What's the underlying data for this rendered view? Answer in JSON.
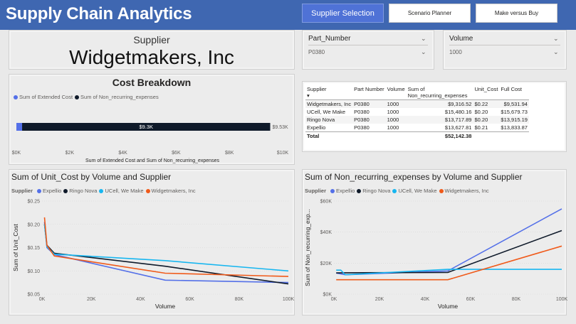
{
  "header": {
    "title": "Supply Chain Analytics",
    "nav": [
      {
        "label": "Supplier Selection",
        "active": true
      },
      {
        "label": "Scenario Planner",
        "active": false
      },
      {
        "label": "Make versus Buy",
        "active": false
      }
    ]
  },
  "supplier_card": {
    "label": "Supplier",
    "value": "Widgetmakers, Inc"
  },
  "slicers": {
    "part": {
      "label": "Part_Number",
      "value": "P0380"
    },
    "volume": {
      "label": "Volume",
      "value": "1000"
    }
  },
  "colors": {
    "Expellio": "#5470e8",
    "Ringo Nova": "#0f1a2a",
    "UCell, We Make": "#17b6f0",
    "Widgetmakers, Inc": "#f05a1a",
    "header": "#3f67b1"
  },
  "cost_breakdown": {
    "title": "Cost Breakdown",
    "legend": [
      "Sum of Extended Cost",
      "Sum of Non_recurring_expenses"
    ],
    "bar_label": "$9.3K",
    "total_label": "$9.53K",
    "xlabel": "Sum of Extended Cost and Sum of Non_recurring_expenses",
    "ticks": [
      "$0K",
      "$2K",
      "$4K",
      "$6K",
      "$8K",
      "$10K"
    ]
  },
  "table": {
    "headers": [
      "Supplier",
      "Part Number",
      "Volume",
      "Sum of Non_recurring_expenses",
      "Unit_Cost",
      "Full Cost"
    ],
    "header_sum_line1": "Sum of",
    "header_sum_line2": "Non_recurring_expenses",
    "rows": [
      [
        "Widgetmakers, Inc",
        "P0380",
        "1000",
        "$9,316.52",
        "$0.22",
        "$9,531.94"
      ],
      [
        "UCell, We Make",
        "P0380",
        "1000",
        "$15,480.16",
        "$0.20",
        "$15,679.73"
      ],
      [
        "Ringo Nova",
        "P0380",
        "1000",
        "$13,717.89",
        "$0.20",
        "$13,915.19"
      ],
      [
        "Expellio",
        "P0380",
        "1000",
        "$13,627.81",
        "$0.21",
        "$13,833.87"
      ]
    ],
    "total_label": "Total",
    "total_value": "$52,142.38"
  },
  "chart_data": [
    {
      "type": "bar",
      "title": "Cost Breakdown",
      "orientation": "horizontal",
      "stacked": true,
      "series": [
        {
          "name": "Sum of Extended Cost",
          "values": [
            215
          ]
        },
        {
          "name": "Sum of Non_recurring_expenses",
          "values": [
            9317
          ]
        }
      ],
      "xlabel": "Sum of Extended Cost and Sum of Non_recurring_expenses",
      "xlim": [
        0,
        10000
      ]
    },
    {
      "type": "line",
      "title": "Sum of Unit_Cost by Volume and Supplier",
      "xlabel": "Volume",
      "ylabel": "Sum of Unit_Cost",
      "xlim": [
        0,
        100000
      ],
      "ylim": [
        0.05,
        0.25
      ],
      "x_ticks": [
        "0K",
        "20K",
        "40K",
        "60K",
        "80K",
        "100K"
      ],
      "y_ticks": [
        "$0.05",
        "$0.10",
        "$0.15",
        "$0.20",
        "$0.25"
      ],
      "legend_title": "Supplier",
      "series": [
        {
          "name": "Expellio",
          "x": [
            1000,
            2000,
            5000,
            50000,
            100000
          ],
          "y": [
            0.205,
            0.15,
            0.135,
            0.08,
            0.075
          ]
        },
        {
          "name": "Ringo Nova",
          "x": [
            1000,
            2000,
            5000,
            50000,
            100000
          ],
          "y": [
            0.2,
            0.155,
            0.138,
            0.11,
            0.072
          ]
        },
        {
          "name": "UCell, We Make",
          "x": [
            1000,
            2000,
            5000,
            50000,
            100000
          ],
          "y": [
            0.2,
            0.152,
            0.136,
            0.122,
            0.1
          ]
        },
        {
          "name": "Widgetmakers, Inc",
          "x": [
            1000,
            2000,
            5000,
            50000,
            100000
          ],
          "y": [
            0.215,
            0.155,
            0.132,
            0.095,
            0.088
          ]
        }
      ]
    },
    {
      "type": "line",
      "title": "Sum of Non_recurring_expenses by Volume and Supplier",
      "xlabel": "Volume",
      "ylabel": "Sum of Non_recurring_exp...",
      "xlim": [
        0,
        100000
      ],
      "ylim": [
        0,
        60000
      ],
      "x_ticks": [
        "0K",
        "20K",
        "40K",
        "60K",
        "80K",
        "100K"
      ],
      "y_ticks": [
        "$0K",
        "$20K",
        "$40K",
        "$60K"
      ],
      "legend_title": "Supplier",
      "series": [
        {
          "name": "Expellio",
          "x": [
            1000,
            5000,
            50000,
            100000
          ],
          "y": [
            13600,
            12500,
            15000,
            55000
          ]
        },
        {
          "name": "Ringo Nova",
          "x": [
            1000,
            5000,
            50000,
            100000
          ],
          "y": [
            13700,
            13800,
            14000,
            41000
          ]
        },
        {
          "name": "UCell, We Make",
          "x": [
            1000,
            3000,
            5000,
            50000,
            100000
          ],
          "y": [
            15500,
            15500,
            12500,
            16000,
            16000
          ]
        },
        {
          "name": "Widgetmakers, Inc",
          "x": [
            1000,
            5000,
            50000,
            100000
          ],
          "y": [
            9300,
            9300,
            9300,
            31000
          ]
        }
      ]
    }
  ]
}
